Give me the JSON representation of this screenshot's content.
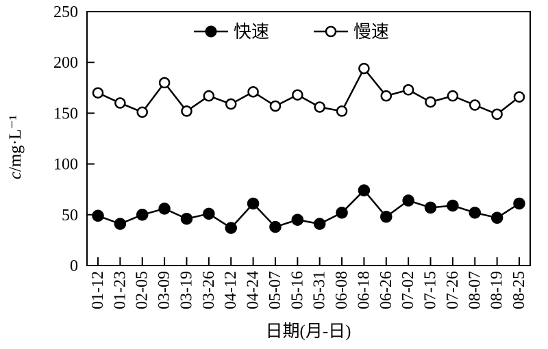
{
  "figure": {
    "background": "#ffffff",
    "line_color": "#000000"
  },
  "chart_data": {
    "type": "line",
    "title": "",
    "xlabel": "日期(月-日)",
    "ylabel": "c/mg·L⁻¹",
    "ylim": [
      0,
      250
    ],
    "yticks": [
      0,
      50,
      100,
      150,
      200,
      250
    ],
    "grid": false,
    "legend_position": "top-center-inside",
    "categories": [
      "01-12",
      "01-23",
      "02-05",
      "03-09",
      "03-19",
      "03-26",
      "04-12",
      "04-24",
      "05-07",
      "05-16",
      "05-31",
      "06-08",
      "06-18",
      "06-26",
      "07-02",
      "07-15",
      "07-26",
      "08-07",
      "08-19",
      "08-25"
    ],
    "series": [
      {
        "name": "快速",
        "marker": "filled-circle",
        "color": "#000000",
        "values": [
          49,
          41,
          50,
          56,
          46,
          51,
          37,
          61,
          38,
          45,
          41,
          52,
          74,
          48,
          64,
          57,
          59,
          52,
          47,
          61
        ]
      },
      {
        "name": "慢速",
        "marker": "open-circle",
        "color": "#000000",
        "values": [
          170,
          160,
          151,
          180,
          152,
          167,
          159,
          171,
          157,
          168,
          156,
          152,
          194,
          167,
          173,
          161,
          167,
          158,
          149,
          166
        ]
      }
    ]
  }
}
